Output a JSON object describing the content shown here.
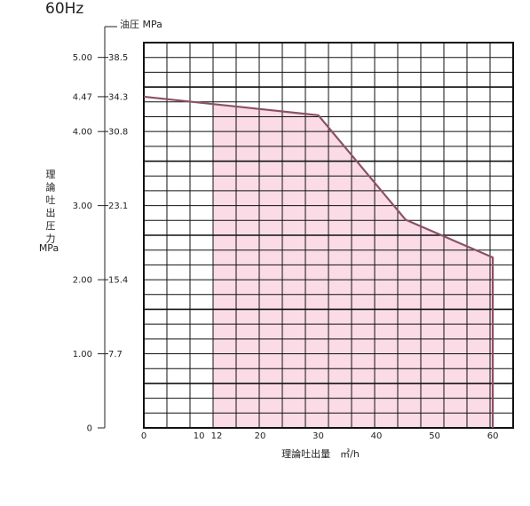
{
  "header": {
    "frequency": "60Hz"
  },
  "chart_data": {
    "type": "area",
    "title": "60Hz",
    "xlabel": "理論吐出量　㎥/h",
    "ylabel_chars": [
      "理",
      "論",
      "吐",
      "出",
      "圧",
      "力"
    ],
    "ylabel_unit": "MPa",
    "y2label": "油圧 MPa",
    "x_ticks": [
      0,
      10,
      12,
      20,
      30,
      40,
      50,
      60
    ],
    "xlim": [
      0,
      63.5
    ],
    "y_ticks": [
      {
        "value": 0,
        "label": "0",
        "oil": ""
      },
      {
        "value": 1.0,
        "label": "1.00",
        "oil": "7.7"
      },
      {
        "value": 2.0,
        "label": "2.00",
        "oil": "15.4"
      },
      {
        "value": 3.0,
        "label": "3.00",
        "oil": "23.1"
      },
      {
        "value": 4.0,
        "label": "4.00",
        "oil": "30.8"
      },
      {
        "value": 4.47,
        "label": "4.47",
        "oil": "34.3"
      },
      {
        "value": 5.0,
        "label": "5.00",
        "oil": "38.5"
      }
    ],
    "ylim": [
      0,
      5.2
    ],
    "series": [
      {
        "x": [
          0,
          30,
          45,
          60,
          60
        ],
        "y": [
          4.47,
          4.22,
          2.81,
          2.3,
          0
        ]
      }
    ],
    "shaded_region": {
      "x_start": 12,
      "x_end": 60
    },
    "grid": true,
    "colors": {
      "line": "#8b5068",
      "fill": "#fadbe6",
      "grid": "#111111"
    }
  }
}
